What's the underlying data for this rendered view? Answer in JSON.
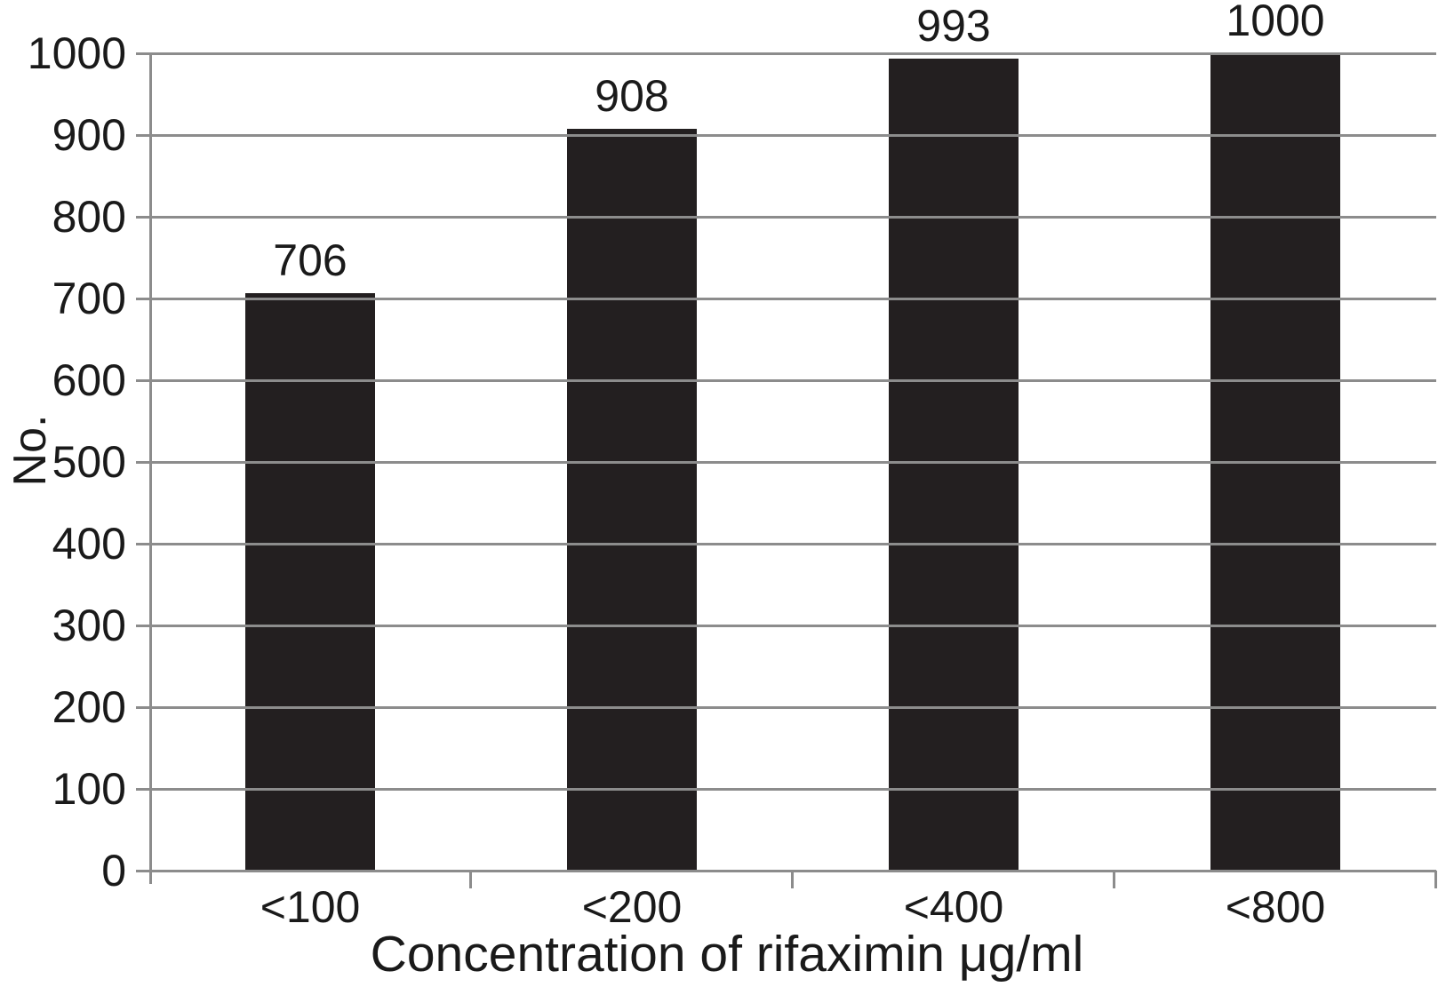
{
  "chart_data": {
    "type": "bar",
    "title": "",
    "categories": [
      "<100",
      "<200",
      "<400",
      "<800"
    ],
    "values": [
      706,
      908,
      993,
      1000
    ],
    "bar_labels": [
      "706",
      "908",
      "993",
      "1000"
    ],
    "xlabel": "Concentration of rifaximin μg/ml",
    "ylabel": "No.",
    "ylim": [
      0,
      1000
    ],
    "ytick_step": 100,
    "ytick_labels": [
      "0",
      "100",
      "200",
      "300",
      "400",
      "500",
      "600",
      "700",
      "800",
      "900",
      "1000"
    ],
    "grid": "horizontal",
    "legend": "none",
    "colors": {
      "bar": "#231f20",
      "grid": "#8c8c8c",
      "axis": "#8c8c8c",
      "text": "#1a1a1a",
      "background": "#ffffff"
    }
  }
}
